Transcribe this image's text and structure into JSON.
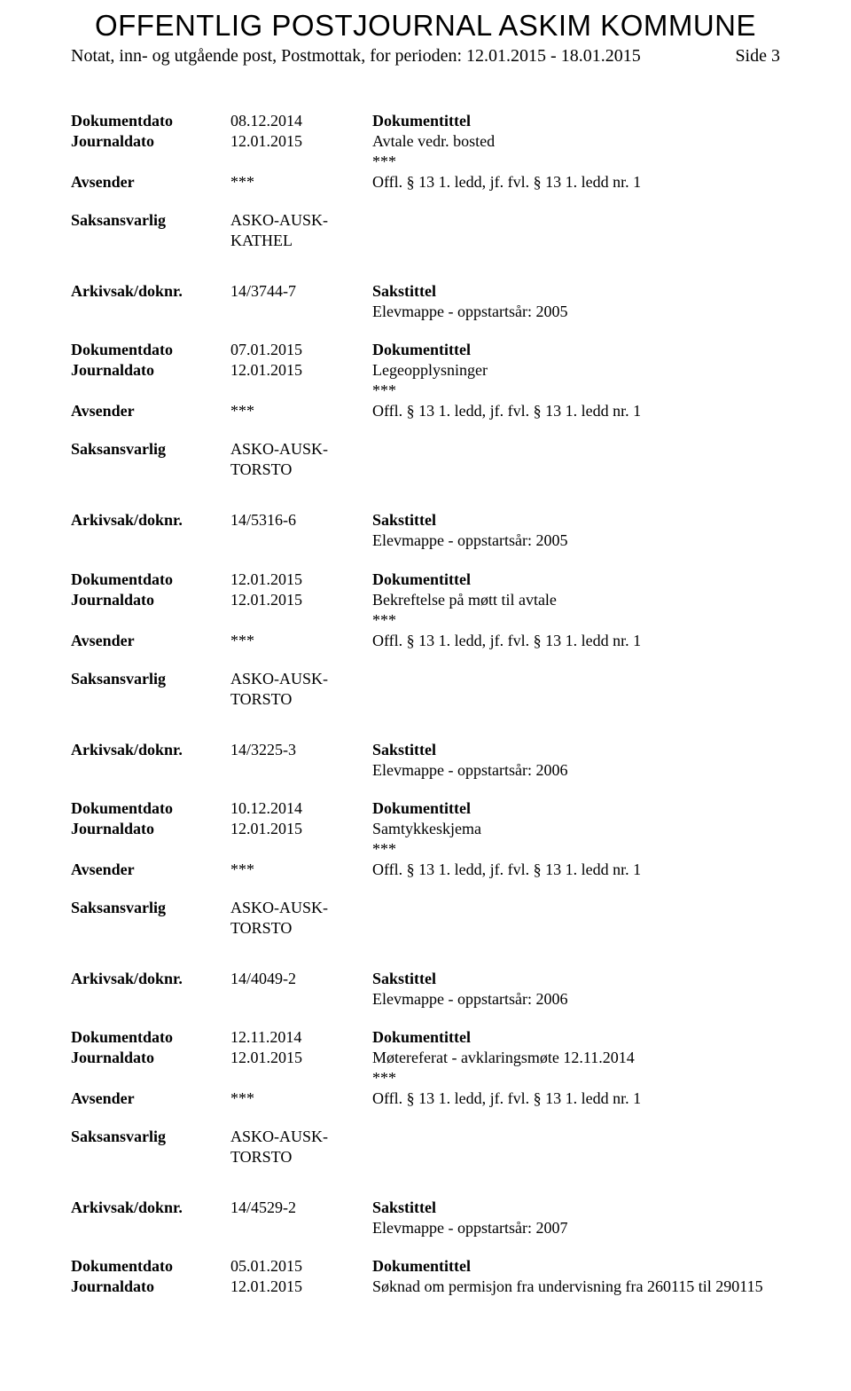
{
  "header": {
    "title": "OFFENTLIG POSTJOURNAL ASKIM KOMMUNE",
    "subtitle": "Notat, inn- og utgående post, Postmottak, for perioden: 12.01.2015 - 18.01.2015",
    "page": "Side 3"
  },
  "labels": {
    "dokumentdato": "Dokumentdato",
    "journaldato": "Journaldato",
    "avsender": "Avsender",
    "saksansvarlig": "Saksansvarlig",
    "arkivsak": "Arkivsak/doknr.",
    "dokumentittel": "Dokumentittel",
    "sakstittel": "Sakstittel"
  },
  "records": [
    {
      "dokumentdato": "08.12.2014",
      "journaldato": "12.01.2015",
      "dokumentittel": "Avtale vedr. bosted",
      "stars": "***",
      "avsender": "***",
      "offl": "Offl. § 13 1. ledd, jf. fvl. § 13 1. ledd nr. 1",
      "saksansvarlig": "ASKO-AUSK-KATHEL"
    },
    {
      "arkivsak": "14/3744-7",
      "sakstittel": "Elevmappe - oppstartsår: 2005",
      "dokumentdato": "07.01.2015",
      "journaldato": "12.01.2015",
      "dokumentittel": "Legeopplysninger",
      "stars": "***",
      "avsender": "***",
      "offl": "Offl. § 13 1. ledd, jf. fvl. § 13 1. ledd nr. 1",
      "saksansvarlig": "ASKO-AUSK-TORSTO"
    },
    {
      "arkivsak": "14/5316-6",
      "sakstittel": "Elevmappe - oppstartsår: 2005",
      "dokumentdato": "12.01.2015",
      "journaldato": "12.01.2015",
      "dokumentittel": "Bekreftelse på møtt til avtale",
      "stars": "***",
      "avsender": "***",
      "offl": "Offl. § 13 1. ledd, jf. fvl. § 13 1. ledd nr. 1",
      "saksansvarlig": "ASKO-AUSK-TORSTO"
    },
    {
      "arkivsak": "14/3225-3",
      "sakstittel": "Elevmappe - oppstartsår: 2006",
      "dokumentdato": "10.12.2014",
      "journaldato": "12.01.2015",
      "dokumentittel": "Samtykkeskjema",
      "stars": "***",
      "avsender": "***",
      "offl": "Offl. § 13 1. ledd, jf. fvl. § 13 1. ledd nr. 1",
      "saksansvarlig": "ASKO-AUSK-TORSTO"
    },
    {
      "arkivsak": "14/4049-2",
      "sakstittel": "Elevmappe - oppstartsår: 2006",
      "dokumentdato": "12.11.2014",
      "journaldato": "12.01.2015",
      "dokumentittel": "Møtereferat - avklaringsmøte 12.11.2014",
      "stars": "***",
      "avsender": "***",
      "offl": "Offl. § 13 1. ledd, jf. fvl. § 13 1. ledd nr. 1",
      "saksansvarlig": "ASKO-AUSK-TORSTO"
    },
    {
      "arkivsak": "14/4529-2",
      "sakstittel": "Elevmappe - oppstartsår: 2007",
      "dokumentdato": "05.01.2015",
      "journaldato": "12.01.2015",
      "dokumentittel": "Søknad om permisjon fra undervisning fra 260115 til 290115"
    }
  ]
}
